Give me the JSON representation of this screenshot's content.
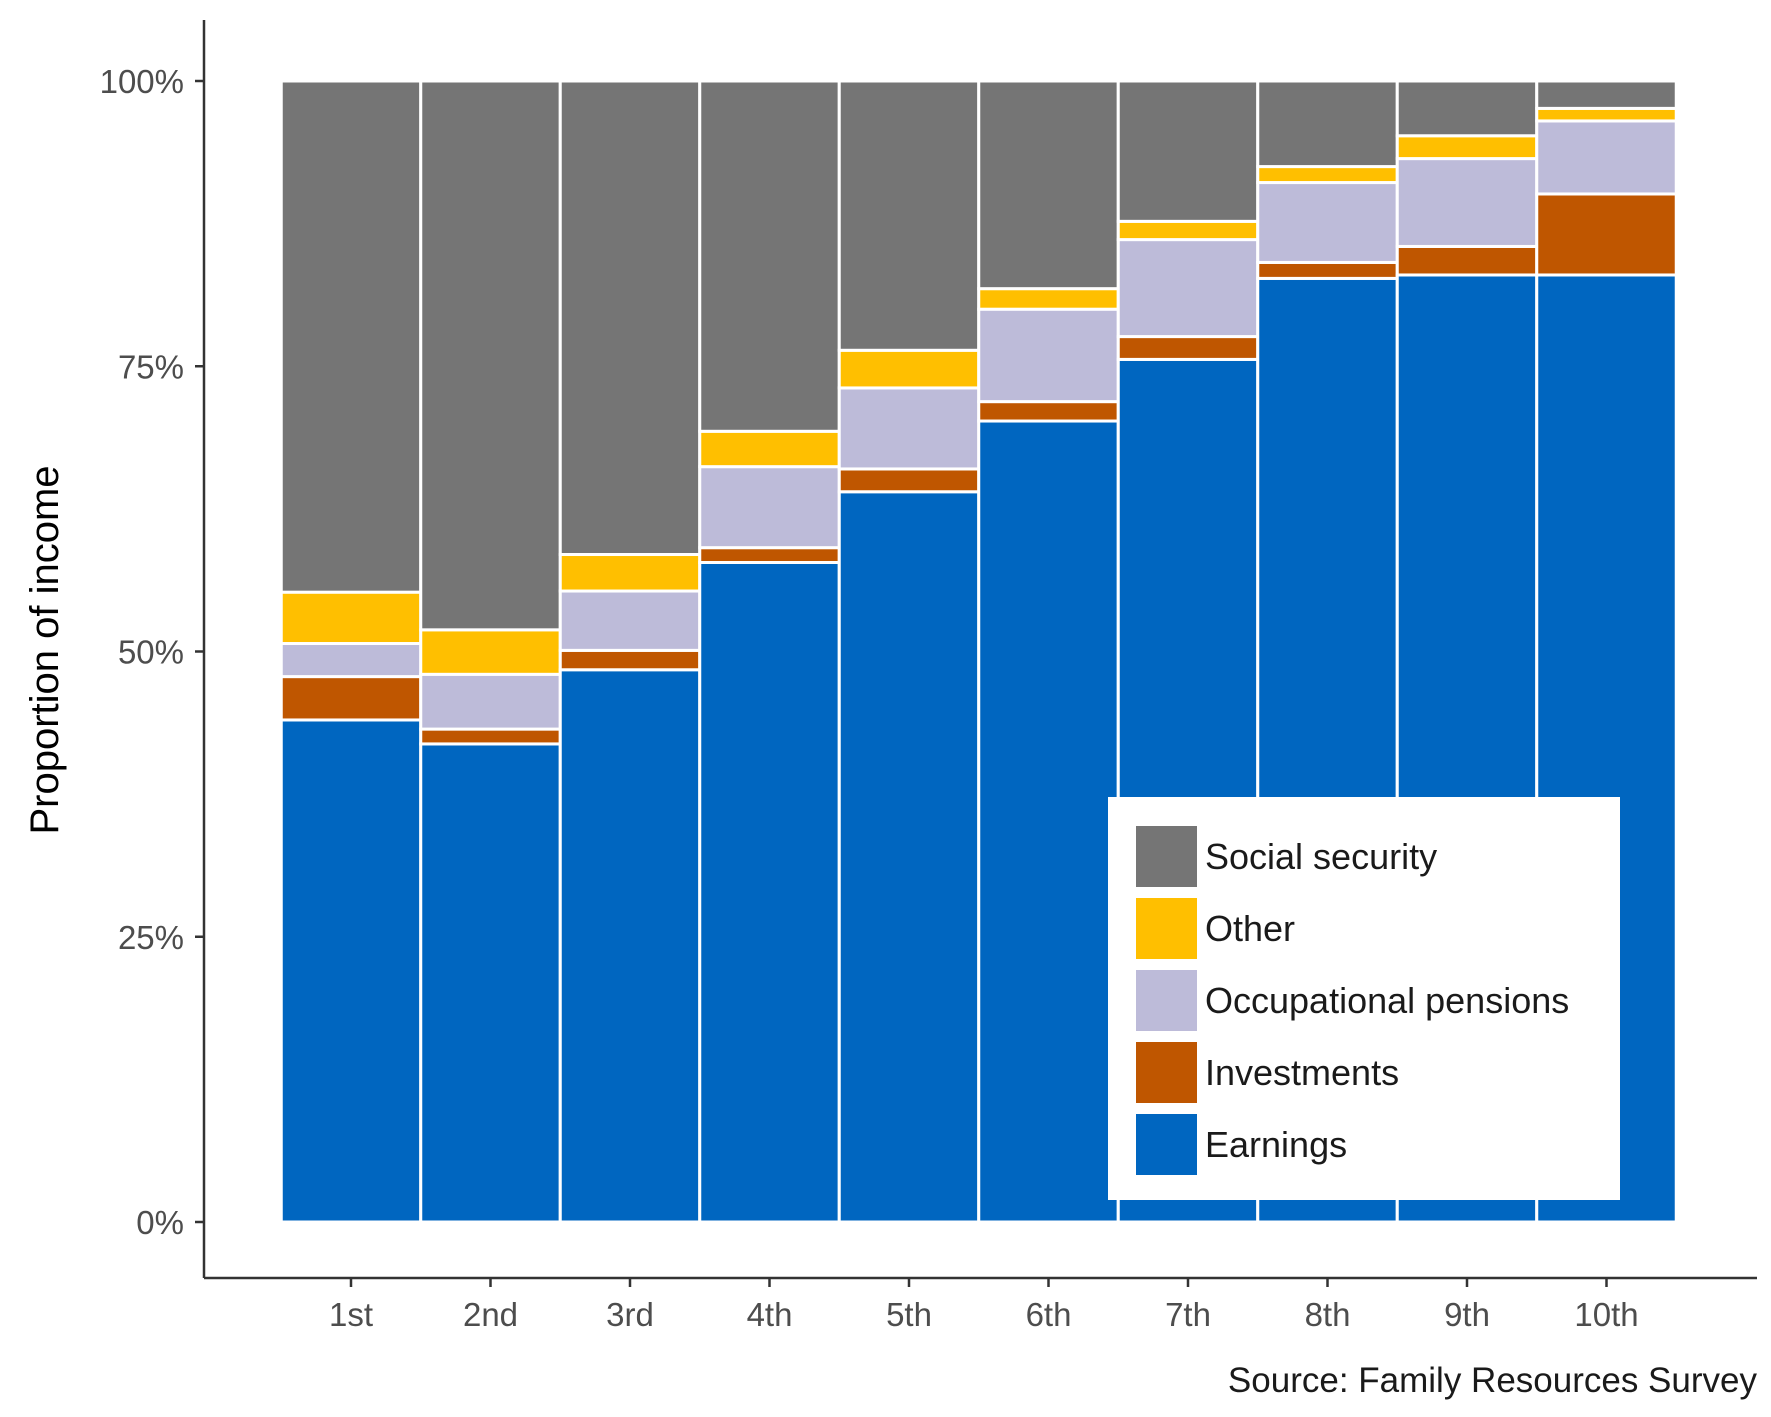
{
  "chart_data": {
    "type": "bar",
    "stacked": true,
    "title": "",
    "xlabel": "",
    "ylabel": "Proportion of income",
    "caption": "Source: Family Resources Survey",
    "categories": [
      "1st",
      "2nd",
      "3rd",
      "4th",
      "5th",
      "6th",
      "7th",
      "8th",
      "9th",
      "10th"
    ],
    "ylim": [
      0,
      1
    ],
    "yticks": [
      {
        "value": 0,
        "label": "0%"
      },
      {
        "value": 0.25,
        "label": "25%"
      },
      {
        "value": 0.5,
        "label": "50%"
      },
      {
        "value": 0.75,
        "label": "75%"
      },
      {
        "value": 1,
        "label": "100%"
      }
    ],
    "series": [
      {
        "name": "Earnings",
        "color": "#0066c0",
        "values": [
          0.44,
          0.419,
          0.484,
          0.578,
          0.64,
          0.702,
          0.756,
          0.827,
          0.83,
          0.83
        ]
      },
      {
        "name": "Investments",
        "color": "#bf5600",
        "values": [
          0.038,
          0.013,
          0.017,
          0.013,
          0.02,
          0.017,
          0.02,
          0.014,
          0.025,
          0.071
        ]
      },
      {
        "name": "Occupational pensions",
        "color": "#bdbbd9",
        "values": [
          0.029,
          0.048,
          0.052,
          0.071,
          0.071,
          0.081,
          0.085,
          0.07,
          0.077,
          0.064
        ]
      },
      {
        "name": "Other",
        "color": "#ffbf00",
        "values": [
          0.045,
          0.039,
          0.032,
          0.031,
          0.033,
          0.018,
          0.016,
          0.014,
          0.02,
          0.011
        ]
      },
      {
        "name": "Social security",
        "color": "#757575",
        "values": [
          0.448,
          0.481,
          0.415,
          0.307,
          0.236,
          0.182,
          0.123,
          0.075,
          0.048,
          0.024
        ]
      }
    ],
    "legend": {
      "position": "bottom-right-inside",
      "order": [
        "Social security",
        "Other",
        "Occupational pensions",
        "Investments",
        "Earnings"
      ]
    },
    "grid": false
  }
}
